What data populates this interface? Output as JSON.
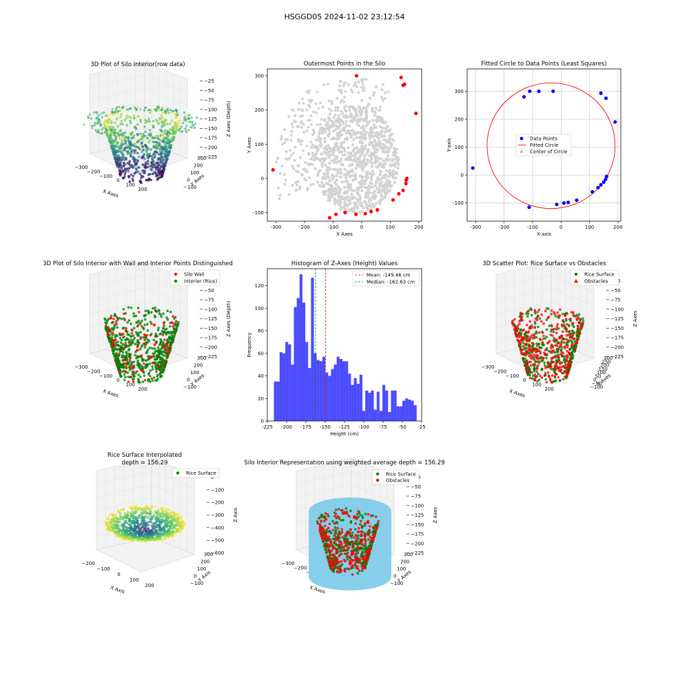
{
  "figure": {
    "suptitle": "HSGGD05 2024-11-02 23:12:54"
  },
  "colors": {
    "wall": "#ff0000",
    "interior": "#008000",
    "grey_points": "#d3d3d3",
    "data_points": "#0000ff",
    "hist_bar": "#0000ff",
    "mean_line": "#ff0000",
    "median_line": "#008000",
    "cylinder": "#87ceeb"
  },
  "chart_data": [
    {
      "id": "p3d1",
      "type": "scatter3d",
      "title": "3D Plot of Silo Interior(row data)",
      "xlabel": "X Axes",
      "ylabel": "Y Axes",
      "zlabel": "Z Axes (Depth)",
      "xticks": [
        "−300",
        "−200",
        "−100",
        "0",
        "100",
        "200"
      ],
      "yticks": [
        "300",
        "200",
        "100",
        "0",
        "−100"
      ],
      "zticks": [
        "−25",
        "−50",
        "−75",
        "−100",
        "−125",
        "−150",
        "−175",
        "−200",
        "−225"
      ]
    },
    {
      "id": "outer",
      "type": "scatter",
      "title": "Outermost Points in the Silo",
      "xlabel": "X Axes",
      "ylabel": "Y Axes",
      "xlim": [
        -330,
        210
      ],
      "ylim": [
        -125,
        320
      ],
      "xticks": [
        -300,
        -200,
        -100,
        0,
        100,
        200
      ],
      "yticks": [
        -100,
        0,
        100,
        200,
        300
      ],
      "wall_x": [
        -310,
        -112,
        -90,
        -58,
        -20,
        -18,
        13,
        33,
        55,
        110,
        130,
        145,
        155,
        156,
        158,
        150,
        138,
        145,
        190
      ],
      "wall_y": [
        25,
        -115,
        -105,
        -100,
        -105,
        300,
        -103,
        -97,
        -92,
        -63,
        -45,
        -35,
        -15,
        -5,
        0,
        275,
        295,
        272,
        190
      ]
    },
    {
      "id": "circle",
      "type": "scatter",
      "title": "Fitted Circle to Data Points (Least Squares)",
      "xlabel": "X-axis",
      "ylabel": "Y-axis",
      "xlim": [
        -330,
        210
      ],
      "ylim": [
        -165,
        380
      ],
      "xticks": [
        -300,
        -200,
        -100,
        0,
        100,
        200
      ],
      "yticks": [
        -100,
        0,
        100,
        200,
        300
      ],
      "points_x": [
        -310,
        -112,
        -130,
        -110,
        -78,
        -28,
        -15,
        10,
        25,
        55,
        110,
        130,
        140,
        150,
        157,
        160,
        140,
        158,
        190
      ],
      "points_y": [
        25,
        -115,
        280,
        300,
        300,
        300,
        -105,
        -100,
        -98,
        -90,
        -60,
        -45,
        -35,
        -25,
        -15,
        -5,
        293,
        275,
        190
      ],
      "center": [
        -35,
        105
      ],
      "radius": 225,
      "legend": [
        "Data Points",
        "Fitted Circle",
        "Center of Circle"
      ]
    },
    {
      "id": "p3d2",
      "type": "scatter3d",
      "title": "3D Plot of Silo Interior with Wall and Interior Points Distinguished",
      "xlabel": "X Axes",
      "ylabel": "Y Axes",
      "zlabel": "Z Axes (Depth)",
      "xticks": [
        "−300",
        "−200",
        "−100",
        "0",
        "100",
        "200"
      ],
      "yticks": [
        "300",
        "200",
        "100",
        "0",
        "−100"
      ],
      "zticks": [
        "−25",
        "−50",
        "−75",
        "−100",
        "−125",
        "−150",
        "−175",
        "−200",
        "−225"
      ],
      "legend": [
        "Silo Wall",
        "Interior (Rice)"
      ]
    },
    {
      "id": "hist",
      "type": "bar",
      "title": "Histogram of Z-Axes (Height) Values",
      "xlabel": "Height (cm)",
      "ylabel": "Frequency",
      "xlim": [
        -225,
        -25
      ],
      "ylim": [
        0,
        135
      ],
      "xticks": [
        -225,
        -200,
        -175,
        -150,
        -125,
        -100,
        -75,
        -50,
        -25
      ],
      "yticks": [
        0,
        20,
        40,
        60,
        80,
        100,
        120
      ],
      "bin_start": -216.5,
      "bin_width": 3.7,
      "values": [
        35,
        35,
        61,
        60,
        70,
        68,
        50,
        101,
        109,
        130,
        105,
        70,
        47,
        127,
        60,
        54,
        53,
        57,
        43,
        40,
        46,
        50,
        57,
        55,
        53,
        53,
        42,
        32,
        38,
        33,
        41,
        9,
        27,
        25,
        27,
        10,
        26,
        9,
        32,
        27,
        8,
        27,
        27,
        13,
        13,
        18,
        20,
        19,
        18,
        14
      ],
      "mean": -149.46,
      "median": -162.63,
      "legend": [
        "Mean: -149.46 cm",
        "Median: -162.63 cm"
      ]
    },
    {
      "id": "p3d3",
      "type": "scatter3d",
      "title": "3D Scatter Plot: Rice Surface vs Obstacles",
      "xlabel": "X Axes",
      "ylabel": "Y Axes",
      "zlabel": "Z Axes",
      "xticks": [
        "−300",
        "−200",
        "−100",
        "0",
        "100",
        "200"
      ],
      "yticks": [
        "300",
        "250",
        "200",
        "150",
        "100",
        "50",
        "0",
        "−50",
        "−100"
      ],
      "zticks": [
        "−25",
        "−50",
        "−75",
        "−100",
        "−125",
        "−150",
        "−175",
        "−200",
        "−225"
      ],
      "legend": [
        "Rice Surface",
        "Obstacles"
      ]
    },
    {
      "id": "p3d4",
      "type": "scatter3d",
      "title": "Rice Surface Interpolated",
      "subtitle": "depth = 156.29",
      "xlabel": "X Axis",
      "ylabel": "Y Axis",
      "zlabel": "Z Axis",
      "xticks": [
        "−200",
        "−100",
        "0",
        "100",
        "200"
      ],
      "yticks": [
        "300",
        "200",
        "100",
        "0",
        "−100"
      ],
      "zticks": [
        "0",
        "−100",
        "−200",
        "−300",
        "−400",
        "−500",
        "−600"
      ],
      "legend": [
        "Rice Surface"
      ]
    },
    {
      "id": "p3d5",
      "type": "scatter3d",
      "title": "Silo Interior Representation using weighted average depth = 156.29",
      "xlabel": "X Axes",
      "ylabel": "Y Axes",
      "zlabel": "Z Axes",
      "xticks": [
        "−300",
        "−200",
        "−100",
        "0",
        "100",
        "200"
      ],
      "yticks": [
        "300",
        "200",
        "100",
        "0",
        "−100"
      ],
      "zticks": [
        "−25",
        "−50",
        "−75",
        "−100",
        "−125",
        "−150",
        "−175",
        "−200",
        "−225"
      ],
      "legend": [
        "Rice Surface",
        "Obstacles"
      ]
    }
  ]
}
